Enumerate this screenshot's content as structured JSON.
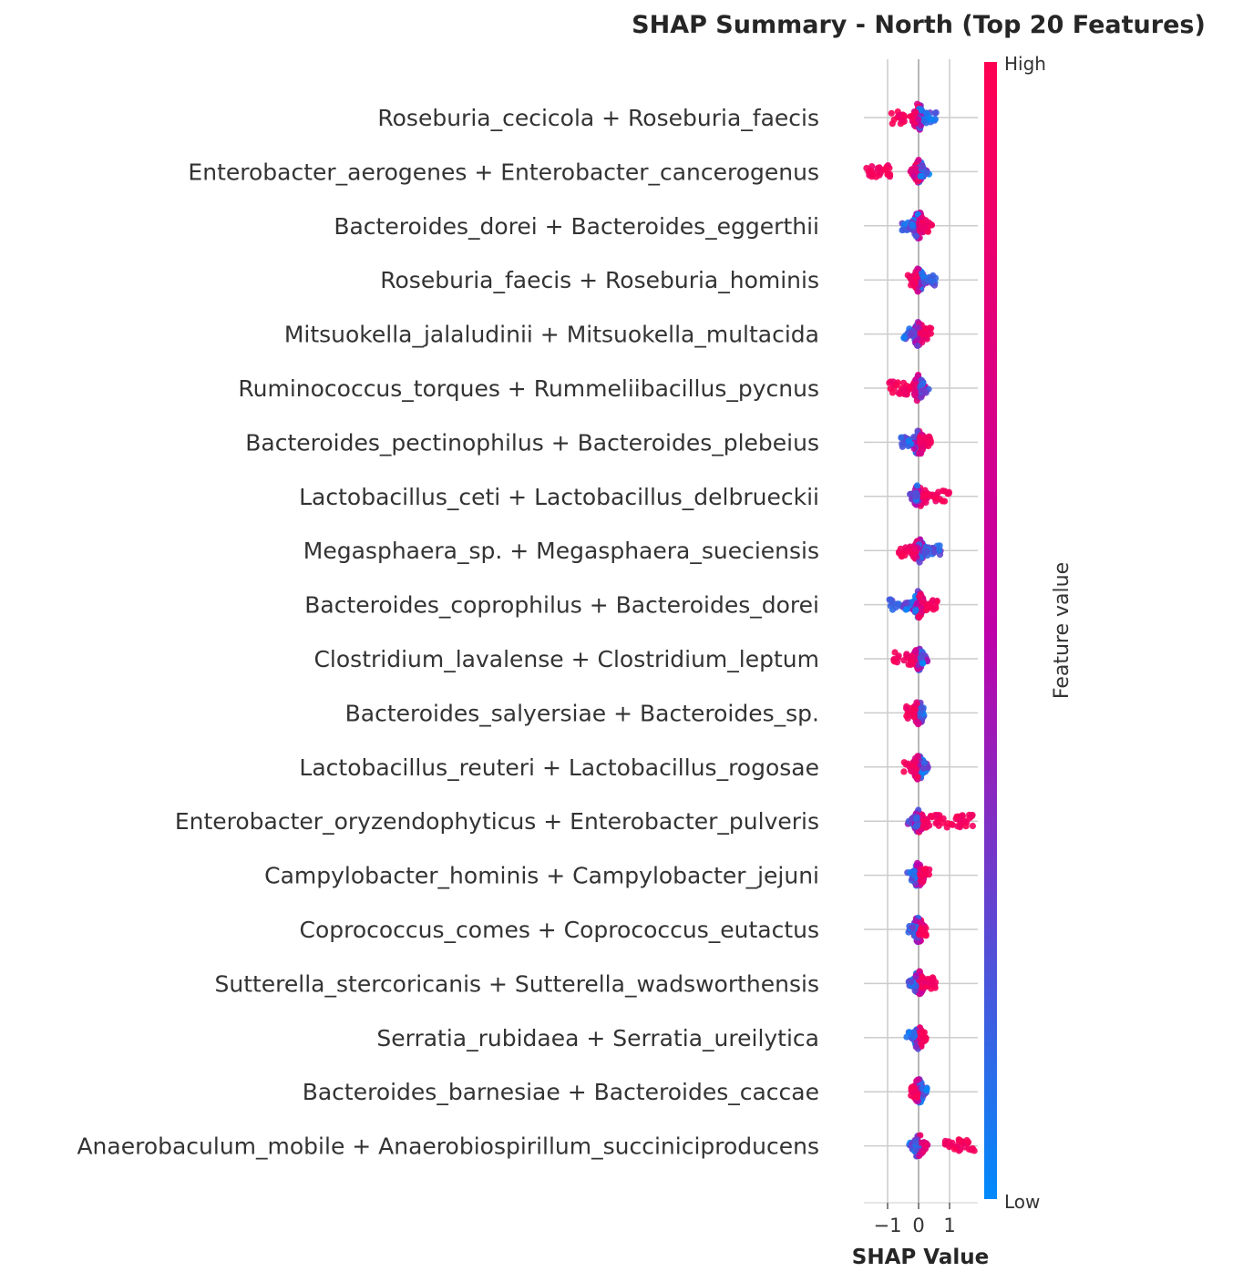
{
  "chart_data": {
    "type": "scatter",
    "subtype": "shap-beeswarm-summary",
    "title": "SHAP Summary - North (Top 20 Features)",
    "xlabel": "SHAP Value",
    "ylabel": "",
    "xticks": [
      -1,
      0,
      1
    ],
    "xtick_labels": [
      "−1",
      "0",
      "1"
    ],
    "xlim": [
      -1.82,
      1.92
    ],
    "grid": "vertical gridlines at ticks, horizontal line per feature row",
    "colorbar": {
      "label": "Feature value",
      "high_label": "High",
      "low_label": "Low",
      "high_color": "#ff0052",
      "mid_color": "#bf00a8",
      "low_color": "#008afb"
    },
    "features": [
      {
        "name": "Roseburia_cecicola + Roseburia_faecis",
        "min": -0.9,
        "max": 0.6,
        "width": 32,
        "high_side": "negative",
        "high_tail": [
          -0.9,
          -0.35
        ]
      },
      {
        "name": "Enterobacter_aerogenes + Enterobacter_cancerogenus",
        "min": -1.7,
        "max": 0.2,
        "width": 26,
        "high_side": "negative",
        "high_tail": [
          -1.7,
          -0.9
        ]
      },
      {
        "name": "Bacteroides_dorei + Bacteroides_eggerthii",
        "min": -0.55,
        "max": 0.45,
        "width": 32,
        "high_side": "positive",
        "high_tail": [
          0.1,
          0.45
        ]
      },
      {
        "name": "Roseburia_faecis + Roseburia_hominis",
        "min": -0.35,
        "max": 0.55,
        "width": 26,
        "high_side": "negative",
        "high_tail": [
          -0.35,
          -0.05
        ]
      },
      {
        "name": "Mitsuokella_jalaludinii + Mitsuokella_multacida",
        "min": -0.5,
        "max": 0.45,
        "width": 30,
        "high_side": "positive",
        "high_tail": [
          0.1,
          0.45
        ]
      },
      {
        "name": "Ruminococcus_torques + Rummeliibacillus_pycnus",
        "min": -0.95,
        "max": 0.25,
        "width": 30,
        "high_side": "negative",
        "high_tail": [
          -0.95,
          -0.2
        ]
      },
      {
        "name": "Bacteroides_pectinophilus + Bacteroides_plebeius",
        "min": -0.6,
        "max": 0.4,
        "width": 30,
        "high_side": "positive",
        "high_tail": [
          0.0,
          0.4
        ]
      },
      {
        "name": "Lactobacillus_ceti + Lactobacillus_delbrueckii",
        "min": -0.1,
        "max": 1.0,
        "width": 26,
        "high_side": "positive",
        "high_tail": [
          0.15,
          1.0
        ]
      },
      {
        "name": "Megasphaera_sp. + Megasphaera_sueciensis",
        "min": -0.65,
        "max": 0.75,
        "width": 30,
        "high_side": "negative",
        "high_tail": [
          -0.65,
          -0.1
        ]
      },
      {
        "name": "Bacteroides_coprophilus + Bacteroides_dorei",
        "min": -0.95,
        "max": 0.6,
        "width": 30,
        "high_side": "positive",
        "high_tail": [
          0.1,
          0.6
        ]
      },
      {
        "name": "Clostridium_lavalense + Clostridium_leptum",
        "min": -0.8,
        "max": 0.15,
        "width": 26,
        "high_side": "negative",
        "high_tail": [
          -0.8,
          -0.2
        ]
      },
      {
        "name": "Bacteroides_salyersiae + Bacteroides_sp.",
        "min": -0.4,
        "max": 0.15,
        "width": 26,
        "high_side": "negative",
        "high_tail": [
          -0.4,
          -0.1
        ]
      },
      {
        "name": "Lactobacillus_reuteri + Lactobacillus_rogosae",
        "min": -0.5,
        "max": 0.35,
        "width": 30,
        "high_side": "negative",
        "high_tail": [
          -0.5,
          -0.05
        ]
      },
      {
        "name": "Enterobacter_oryzendophyticus + Enterobacter_pulveris",
        "min": -0.15,
        "max": 1.75,
        "width": 26,
        "high_side": "positive",
        "high_tail": [
          0.15,
          1.75
        ]
      },
      {
        "name": "Campylobacter_hominis + Campylobacter_jejuni",
        "min": -0.4,
        "max": 0.35,
        "width": 28,
        "high_side": "positive",
        "high_tail": [
          0.05,
          0.35
        ]
      },
      {
        "name": "Coprococcus_comes + Coprococcus_eutactus",
        "min": -0.35,
        "max": 0.25,
        "width": 30,
        "high_side": "positive",
        "high_tail": [
          0.0,
          0.25
        ]
      },
      {
        "name": "Sutterella_stercoricanis + Sutterella_wadsworthensis",
        "min": -0.25,
        "max": 0.55,
        "width": 28,
        "high_side": "positive",
        "high_tail": [
          0.1,
          0.55
        ]
      },
      {
        "name": "Serratia_rubidaea + Serratia_ureilytica",
        "min": -0.4,
        "max": 0.25,
        "width": 26,
        "high_side": "positive",
        "high_tail": [
          0.0,
          0.25
        ]
      },
      {
        "name": "Bacteroides_barnesiae + Bacteroides_caccae",
        "min": -0.25,
        "max": 0.3,
        "width": 28,
        "high_side": "negative",
        "high_tail": [
          -0.25,
          0.0
        ]
      },
      {
        "name": "Anaerobaculum_mobile + Anaerobiospirillum_succiniciproducens",
        "min": -0.15,
        "max": 1.8,
        "width": 28,
        "high_side": "positive",
        "high_tail": [
          0.8,
          1.8
        ]
      }
    ]
  }
}
